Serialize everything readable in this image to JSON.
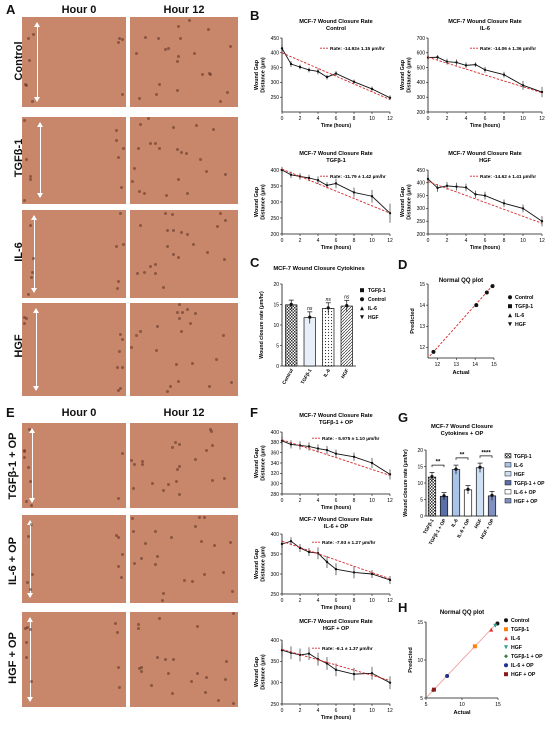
{
  "panel_letters": {
    "A": "A",
    "B": "B",
    "C": "C",
    "D": "D",
    "E": "E",
    "F": "F",
    "G": "G",
    "H": "H"
  },
  "panel_a": {
    "col_headers": [
      "Hour 0",
      "Hour 12"
    ],
    "row_labels": [
      "Control",
      "TGFβ-1",
      "IL-6",
      "HGF"
    ]
  },
  "panel_e": {
    "col_headers": [
      "Hour 0",
      "Hour 12"
    ],
    "row_labels": [
      "TGFβ-1 + OP",
      "IL-6 + OP",
      "HGF + OP"
    ]
  },
  "colors": {
    "tissue": "#c8866a",
    "regression": "#d62728",
    "line": "#111111"
  },
  "chart_data": [
    {
      "id": "b1",
      "type": "line",
      "title": "MCF-7 Wound Closure Rate",
      "subtitle": "Control",
      "xlabel": "Time (hours)",
      "ylabel": "Wound Gap\nDistance (µm)",
      "x": [
        0,
        1,
        2,
        3,
        4,
        5,
        6,
        8,
        10,
        12
      ],
      "values": [
        415,
        362,
        352,
        342,
        337,
        318,
        330,
        302,
        278,
        248
      ],
      "errors": [
        12,
        10,
        8,
        8,
        10,
        8,
        8,
        8,
        8,
        8
      ],
      "trend": [
        [
          0,
          400
        ],
        [
          12,
          242
        ]
      ],
      "annotation": "Rate: -14.92± 1.15 µm/hr",
      "xlim": [
        0,
        12
      ],
      "ylim": [
        200,
        450
      ],
      "xticks": [
        0,
        2,
        4,
        6,
        8,
        10,
        12
      ],
      "yticks": [
        250,
        300,
        350,
        400,
        450
      ]
    },
    {
      "id": "b2",
      "type": "line",
      "title": "MCF-7 Wound Closure Rate",
      "subtitle": "IL-6",
      "xlabel": "Time (hours)",
      "ylabel": "Wound Gap\nDistance (µm)",
      "x": [
        0,
        1,
        2,
        3,
        4,
        5,
        6,
        8,
        10,
        12
      ],
      "values": [
        568,
        570,
        540,
        535,
        515,
        520,
        485,
        452,
        380,
        335
      ],
      "errors": [
        15,
        15,
        20,
        20,
        20,
        15,
        20,
        20,
        30,
        35
      ],
      "trend": [
        [
          0,
          570
        ],
        [
          12,
          330
        ]
      ],
      "annotation": "Rate: -14.06 ± 1.36 µm/hr",
      "xlim": [
        0,
        12
      ],
      "ylim": [
        200,
        700
      ],
      "xticks": [
        0,
        2,
        4,
        6,
        8,
        10,
        12
      ],
      "yticks": [
        200,
        300,
        400,
        500,
        600,
        700
      ]
    },
    {
      "id": "b3",
      "type": "line",
      "title": "MCF-7 Wound Closure Rate",
      "subtitle": "TGFβ-1",
      "xlabel": "Time (hours)",
      "ylabel": "Wound Gap\nDistance (µm)",
      "x": [
        0,
        1,
        2,
        3,
        4,
        5,
        6,
        8,
        10,
        12
      ],
      "values": [
        400,
        385,
        380,
        375,
        368,
        352,
        358,
        330,
        318,
        265
      ],
      "errors": [
        10,
        10,
        10,
        10,
        12,
        10,
        15,
        15,
        20,
        30
      ],
      "trend": [
        [
          0,
          403
        ],
        [
          12,
          265
        ]
      ],
      "annotation": "Rate: -11.79 ± 1.42 µm/hr",
      "xlim": [
        0,
        12
      ],
      "ylim": [
        200,
        400
      ],
      "xticks": [
        0,
        2,
        4,
        6,
        8,
        10,
        12
      ],
      "yticks": [
        200,
        250,
        300,
        350,
        400
      ]
    },
    {
      "id": "b4",
      "type": "line",
      "title": "MCF-7 Wound Closure Rate",
      "subtitle": "HGF",
      "xlabel": "Time (hours)",
      "ylabel": "Wound Gap\nDistance (µm)",
      "x": [
        0,
        1,
        2,
        3,
        4,
        5,
        6,
        8,
        10,
        12
      ],
      "values": [
        415,
        380,
        388,
        385,
        382,
        355,
        350,
        320,
        300,
        250
      ],
      "errors": [
        15,
        15,
        15,
        15,
        15,
        15,
        15,
        15,
        15,
        20
      ],
      "trend": [
        [
          0,
          405
        ],
        [
          12,
          242
        ]
      ],
      "annotation": "Rate: -14.62 ± 1.41 µm/hr",
      "xlim": [
        0,
        12
      ],
      "ylim": [
        200,
        450
      ],
      "xticks": [
        0,
        2,
        4,
        6,
        8,
        10,
        12
      ],
      "yticks": [
        200,
        250,
        300,
        350,
        400,
        450
      ]
    },
    {
      "id": "c",
      "type": "bar",
      "title": "MCF-7 Wound Closure Cytokines",
      "ylabel": "Wound closure rate (µm/hr)",
      "categories": [
        "Control",
        "TGFβ-1",
        "IL-6",
        "HGF"
      ],
      "values": [
        14.92,
        11.79,
        14.06,
        14.62
      ],
      "errors": [
        1.15,
        1.42,
        1.36,
        1.41
      ],
      "sig": [
        "",
        "ns",
        "ns",
        "ns"
      ],
      "legend": [
        "TGFβ-1",
        "Control",
        "IL-6",
        "HGF"
      ],
      "ylim": [
        0,
        20
      ],
      "yticks": [
        0,
        5,
        10,
        15,
        20
      ]
    },
    {
      "id": "d",
      "type": "scatter",
      "title": "Normal QQ plot",
      "xlabel": "Actual",
      "ylabel": "Predicted",
      "points": [
        [
          11.79,
          11.79
        ],
        [
          14.06,
          14.0
        ],
        [
          14.62,
          14.6
        ],
        [
          14.92,
          14.9
        ]
      ],
      "legend": [
        "Control",
        "TGFβ-1",
        "IL-6",
        "HGF"
      ],
      "xlim": [
        11.5,
        15
      ],
      "ylim": [
        11.5,
        15
      ],
      "xticks": [
        12,
        13,
        14,
        15
      ],
      "yticks": [
        12,
        13,
        14,
        15
      ]
    },
    {
      "id": "f1",
      "type": "line",
      "title": "MCF-7 Wound Closure Rate",
      "subtitle": "TGFβ-1 + OP",
      "xlabel": "Time (hours)",
      "ylabel": "Wound Gap\nDistance (µm)",
      "x": [
        0,
        1,
        2,
        3,
        4,
        5,
        6,
        8,
        10,
        12
      ],
      "values": [
        383,
        376,
        374,
        372,
        368,
        365,
        358,
        352,
        340,
        318
      ],
      "errors": [
        8,
        8,
        8,
        8,
        8,
        8,
        8,
        8,
        10,
        10
      ],
      "trend": [
        [
          0,
          385
        ],
        [
          12,
          316
        ]
      ],
      "annotation": "Rate: - 5.975 ± 1.10 µm/hr",
      "xlim": [
        0,
        12
      ],
      "ylim": [
        280,
        400
      ],
      "xticks": [
        0,
        2,
        4,
        6,
        8,
        10,
        12
      ],
      "yticks": [
        280,
        300,
        320,
        340,
        360,
        380,
        400
      ]
    },
    {
      "id": "f2",
      "type": "line",
      "title": "MCF-7 Wound Closure Rate",
      "subtitle": "IL-6 + OP",
      "xlabel": "Time (hours)",
      "ylabel": "Wound Gap\nDistance (µm)",
      "x": [
        0,
        1,
        2,
        3,
        4,
        5,
        6,
        8,
        10,
        12
      ],
      "values": [
        375,
        382,
        365,
        355,
        352,
        330,
        312,
        304,
        300,
        285
      ],
      "errors": [
        10,
        10,
        10,
        10,
        15,
        15,
        15,
        15,
        10,
        10
      ],
      "trend": [
        [
          0,
          382
        ],
        [
          12,
          288
        ]
      ],
      "annotation": "Rate: -7.93 ± 1.27 µm/hr",
      "xlim": [
        0,
        12
      ],
      "ylim": [
        250,
        400
      ],
      "xticks": [
        0,
        2,
        4,
        6,
        8,
        10,
        12
      ],
      "yticks": [
        250,
        300,
        350,
        400
      ]
    },
    {
      "id": "f3",
      "type": "line",
      "title": "MCF-7 Wound Closure Rate",
      "subtitle": "HGF + OP",
      "xlabel": "Time (hours)",
      "ylabel": "Wound Gap\nDistance (µm)",
      "x": [
        0,
        1,
        2,
        3,
        4,
        5,
        6,
        8,
        10,
        12
      ],
      "values": [
        376,
        370,
        365,
        368,
        355,
        345,
        330,
        320,
        322,
        300
      ],
      "errors": [
        15,
        15,
        15,
        15,
        15,
        15,
        15,
        15,
        15,
        15
      ],
      "trend": [
        [
          0,
          378
        ],
        [
          12,
          305
        ]
      ],
      "annotation": "Rate: -6.1 ± 1.37 µm/hr",
      "xlim": [
        0,
        12
      ],
      "ylim": [
        250,
        400
      ],
      "xticks": [
        0,
        2,
        4,
        6,
        8,
        10,
        12
      ],
      "yticks": [
        250,
        300,
        350,
        400
      ]
    },
    {
      "id": "g",
      "type": "bar",
      "title": "MCF-7 Wound Closure",
      "subtitle": "Cytokines + OP",
      "ylabel": "Wound closure rate (µm/hr)",
      "categories": [
        "TGFβ-1",
        "TGFβ-1 + OP",
        "IL-6",
        "IL-6 + OP",
        "HGF",
        "HGF + OP"
      ],
      "values": [
        11.79,
        5.975,
        14.06,
        7.93,
        14.62,
        6.1
      ],
      "errors": [
        1.42,
        1.1,
        1.36,
        1.27,
        1.41,
        1.37
      ],
      "brackets": [
        {
          "from": 0,
          "to": 1,
          "label": "**"
        },
        {
          "from": 2,
          "to": 3,
          "label": "**"
        },
        {
          "from": 4,
          "to": 5,
          "label": "****"
        }
      ],
      "legend": [
        "TGFβ-1",
        "IL-6",
        "HGF",
        "TGFβ-1 + OP",
        "IL-6 + OP",
        "HGF + OP"
      ],
      "ylim": [
        0,
        20
      ],
      "yticks": [
        0,
        5,
        10,
        15,
        20
      ]
    },
    {
      "id": "h",
      "type": "scatter",
      "title": "Normal QQ plot",
      "xlabel": "Actual",
      "ylabel": "Predicted",
      "points": [
        [
          14.92,
          14.8
        ],
        [
          11.79,
          11.8
        ],
        [
          14.06,
          14.0
        ],
        [
          14.62,
          14.5
        ],
        [
          5.975,
          6.0
        ],
        [
          7.93,
          7.9
        ],
        [
          6.1,
          6.1
        ]
      ],
      "point_colors": [
        "#111111",
        "#ff7f0e",
        "#e0302a",
        "#2a9d8f",
        "#3a7d3a",
        "#1f2f8f",
        "#8b1a1a"
      ],
      "point_shapes": [
        "circle",
        "square",
        "triangle",
        "triangle-down",
        "diamond",
        "circle",
        "square"
      ],
      "legend": [
        "Control",
        "TGFβ-1",
        "IL-6",
        "HGF",
        "TGFβ-1 + OP",
        "IL-6 + OP",
        "HGF + OP"
      ],
      "xlim": [
        5,
        15
      ],
      "ylim": [
        5,
        15
      ],
      "xticks": [
        5,
        10,
        15
      ],
      "yticks": [
        5,
        10,
        15
      ]
    }
  ]
}
